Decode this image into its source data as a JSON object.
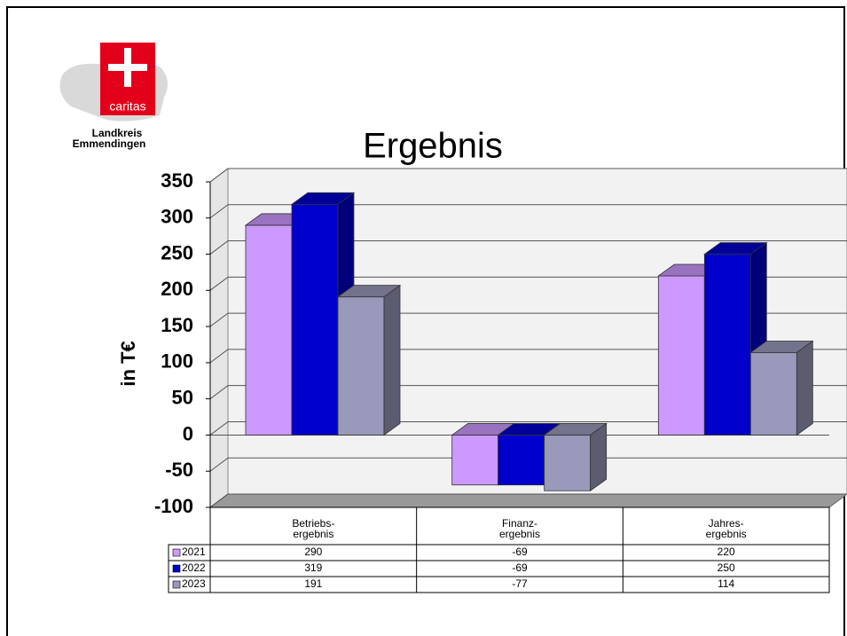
{
  "logo": {
    "brand": "caritas",
    "line1": "Landkreis",
    "line2": "Emmendingen"
  },
  "chart_data": {
    "type": "bar3d",
    "title": "Ergebnis",
    "y_label": "in T€",
    "categories": [
      "Betriebs-\nergebnis",
      "Finanz-\nergebnis",
      "Jahres-\nergebnis"
    ],
    "series": [
      {
        "name": "2021",
        "color": "#cc99ff",
        "values": [
          290,
          -69,
          220
        ]
      },
      {
        "name": "2022",
        "color": "#0000cc",
        "values": [
          319,
          -69,
          250
        ]
      },
      {
        "name": "2023",
        "color": "#9999bb",
        "values": [
          191,
          -77,
          114
        ]
      }
    ],
    "ylim": [
      -100,
      350
    ],
    "yticks": [
      -100,
      -50,
      0,
      50,
      100,
      150,
      200,
      250,
      300,
      350
    ],
    "grid": true
  }
}
